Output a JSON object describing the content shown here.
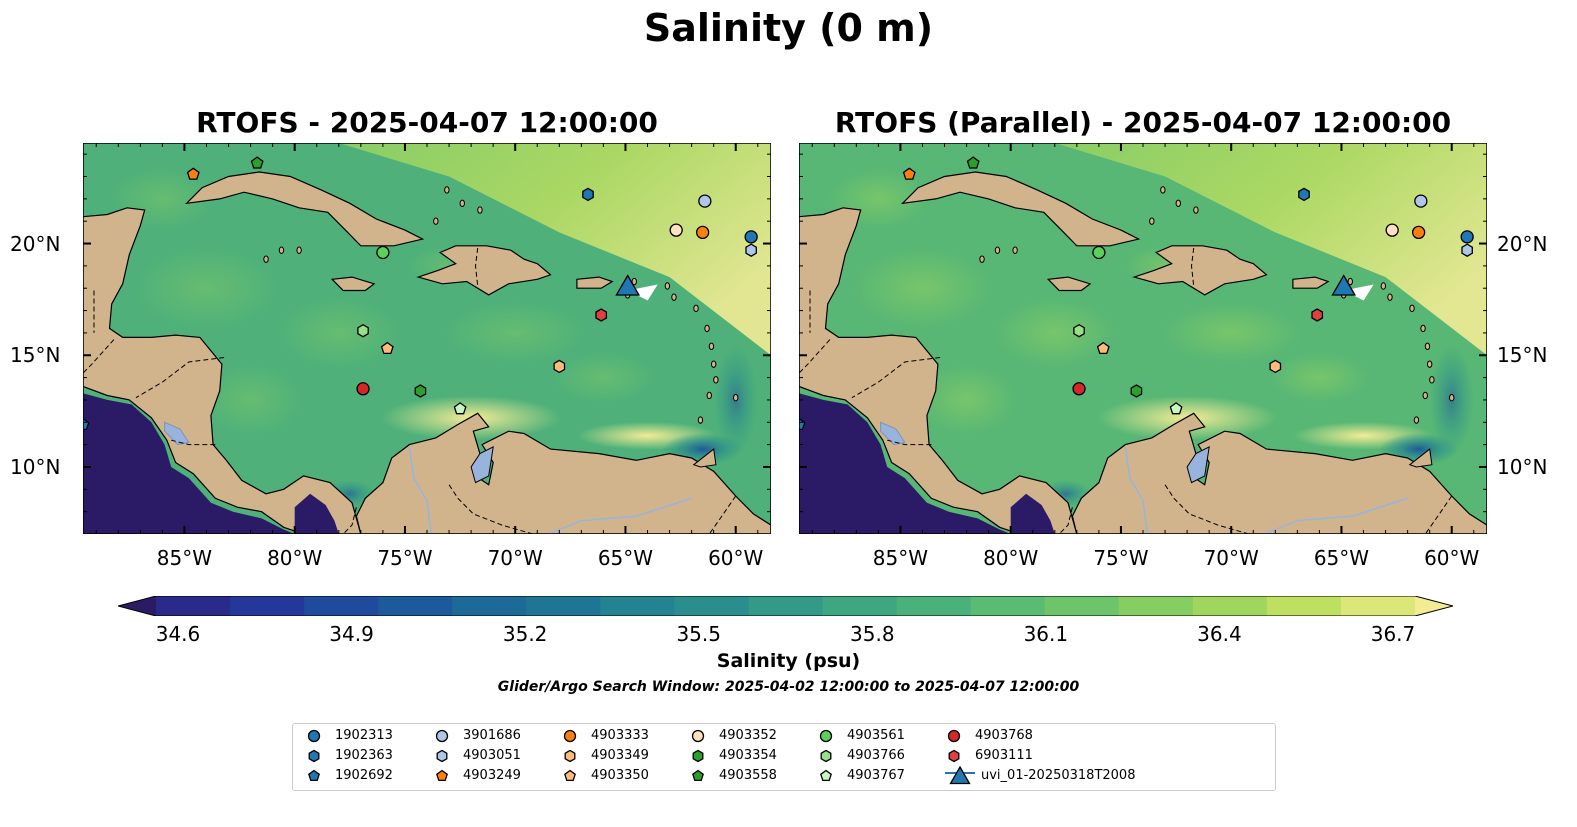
{
  "suptitle": "Salinity (0 m)",
  "panels": [
    {
      "title": "RTOFS - 2025-04-07 12:00:00"
    },
    {
      "title": "RTOFS (Parallel) - 2025-04-07 12:00:00"
    }
  ],
  "x_ticks": [
    "85°W",
    "80°W",
    "75°W",
    "70°W",
    "65°W",
    "60°W"
  ],
  "y_ticks": [
    "20°N",
    "15°N",
    "10°N"
  ],
  "colorbar": {
    "label": "Salinity (psu)",
    "ticks": [
      "34.6",
      "34.9",
      "35.2",
      "35.5",
      "35.8",
      "36.1",
      "36.4",
      "36.7"
    ],
    "colors": [
      "#2b1b67",
      "#2a2a8a",
      "#24389a",
      "#1f4a9e",
      "#1c5a9c",
      "#1d6a98",
      "#1f7694",
      "#238390",
      "#2a8f8c",
      "#339a87",
      "#3ea681",
      "#4bb17b",
      "#5abb73",
      "#6ec46b",
      "#86cd62",
      "#a0d65d",
      "#bde061",
      "#dbe778",
      "#f3ec95"
    ]
  },
  "search_window": "Glider/Argo Search Window: 2025-04-02 12:00:00 to 2025-04-07 12:00:00",
  "legend": [
    {
      "label": "1902313",
      "marker": "circle",
      "color": "#1f77b4"
    },
    {
      "label": "1902363",
      "marker": "hexagon",
      "color": "#1f77b4"
    },
    {
      "label": "1902692",
      "marker": "pentagon",
      "color": "#1f77b4"
    },
    {
      "label": "3901686",
      "marker": "circle",
      "color": "#aec7e8"
    },
    {
      "label": "4903051",
      "marker": "hexagon",
      "color": "#aec7e8"
    },
    {
      "label": "4903249",
      "marker": "pentagon",
      "color": "#ff7f0e"
    },
    {
      "label": "4903333",
      "marker": "circle",
      "color": "#ff7f0e"
    },
    {
      "label": "4903349",
      "marker": "hexagon",
      "color": "#ffbb78"
    },
    {
      "label": "4903350",
      "marker": "pentagon",
      "color": "#ffbb78"
    },
    {
      "label": "4903352",
      "marker": "circle",
      "color": "#ffe0c0"
    },
    {
      "label": "4903354",
      "marker": "hexagon",
      "color": "#2ca02c"
    },
    {
      "label": "4903558",
      "marker": "pentagon",
      "color": "#2ca02c"
    },
    {
      "label": "4903561",
      "marker": "circle",
      "color": "#5bd05b"
    },
    {
      "label": "4903766",
      "marker": "hexagon",
      "color": "#98df8a"
    },
    {
      "label": "4903767",
      "marker": "pentagon",
      "color": "#c8f5c0"
    },
    {
      "label": "4903768",
      "marker": "circle",
      "color": "#d62728"
    },
    {
      "label": "6903111",
      "marker": "hexagon",
      "color": "#e04040"
    },
    {
      "label": "uvi_01-20250318T2008",
      "marker": "triangle",
      "color": "#1f77b4"
    }
  ],
  "floats": [
    {
      "id": "1902313",
      "lon": -59.3,
      "lat": 20.3
    },
    {
      "id": "1902363",
      "lon": -66.7,
      "lat": 22.2
    },
    {
      "id": "1902692",
      "lon": -89.6,
      "lat": 11.9
    },
    {
      "id": "3901686",
      "lon": -61.4,
      "lat": 21.9
    },
    {
      "id": "4903051",
      "lon": -59.3,
      "lat": 19.7
    },
    {
      "id": "4903249",
      "lon": -84.6,
      "lat": 23.1
    },
    {
      "id": "4903333",
      "lon": -61.5,
      "lat": 20.5
    },
    {
      "id": "4903349",
      "lon": -68.0,
      "lat": 14.5
    },
    {
      "id": "4903350",
      "lon": -75.8,
      "lat": 15.3
    },
    {
      "id": "4903352",
      "lon": -62.7,
      "lat": 20.6
    },
    {
      "id": "4903354",
      "lon": -74.3,
      "lat": 13.4
    },
    {
      "id": "4903558",
      "lon": -81.7,
      "lat": 23.6
    },
    {
      "id": "4903561",
      "lon": -76.0,
      "lat": 19.6
    },
    {
      "id": "4903766",
      "lon": -76.9,
      "lat": 16.1
    },
    {
      "id": "4903767",
      "lon": -72.5,
      "lat": 12.6
    },
    {
      "id": "4903768",
      "lon": -76.9,
      "lat": 13.5
    },
    {
      "id": "6903111",
      "lon": -66.1,
      "lat": 16.8
    }
  ],
  "glider": {
    "id": "uvi_01-20250318T2008",
    "lon": -64.9,
    "lat": 17.9
  },
  "map_extent": {
    "lon": [
      -89.6,
      -58.4
    ],
    "lat": [
      7.0,
      24.5
    ]
  }
}
